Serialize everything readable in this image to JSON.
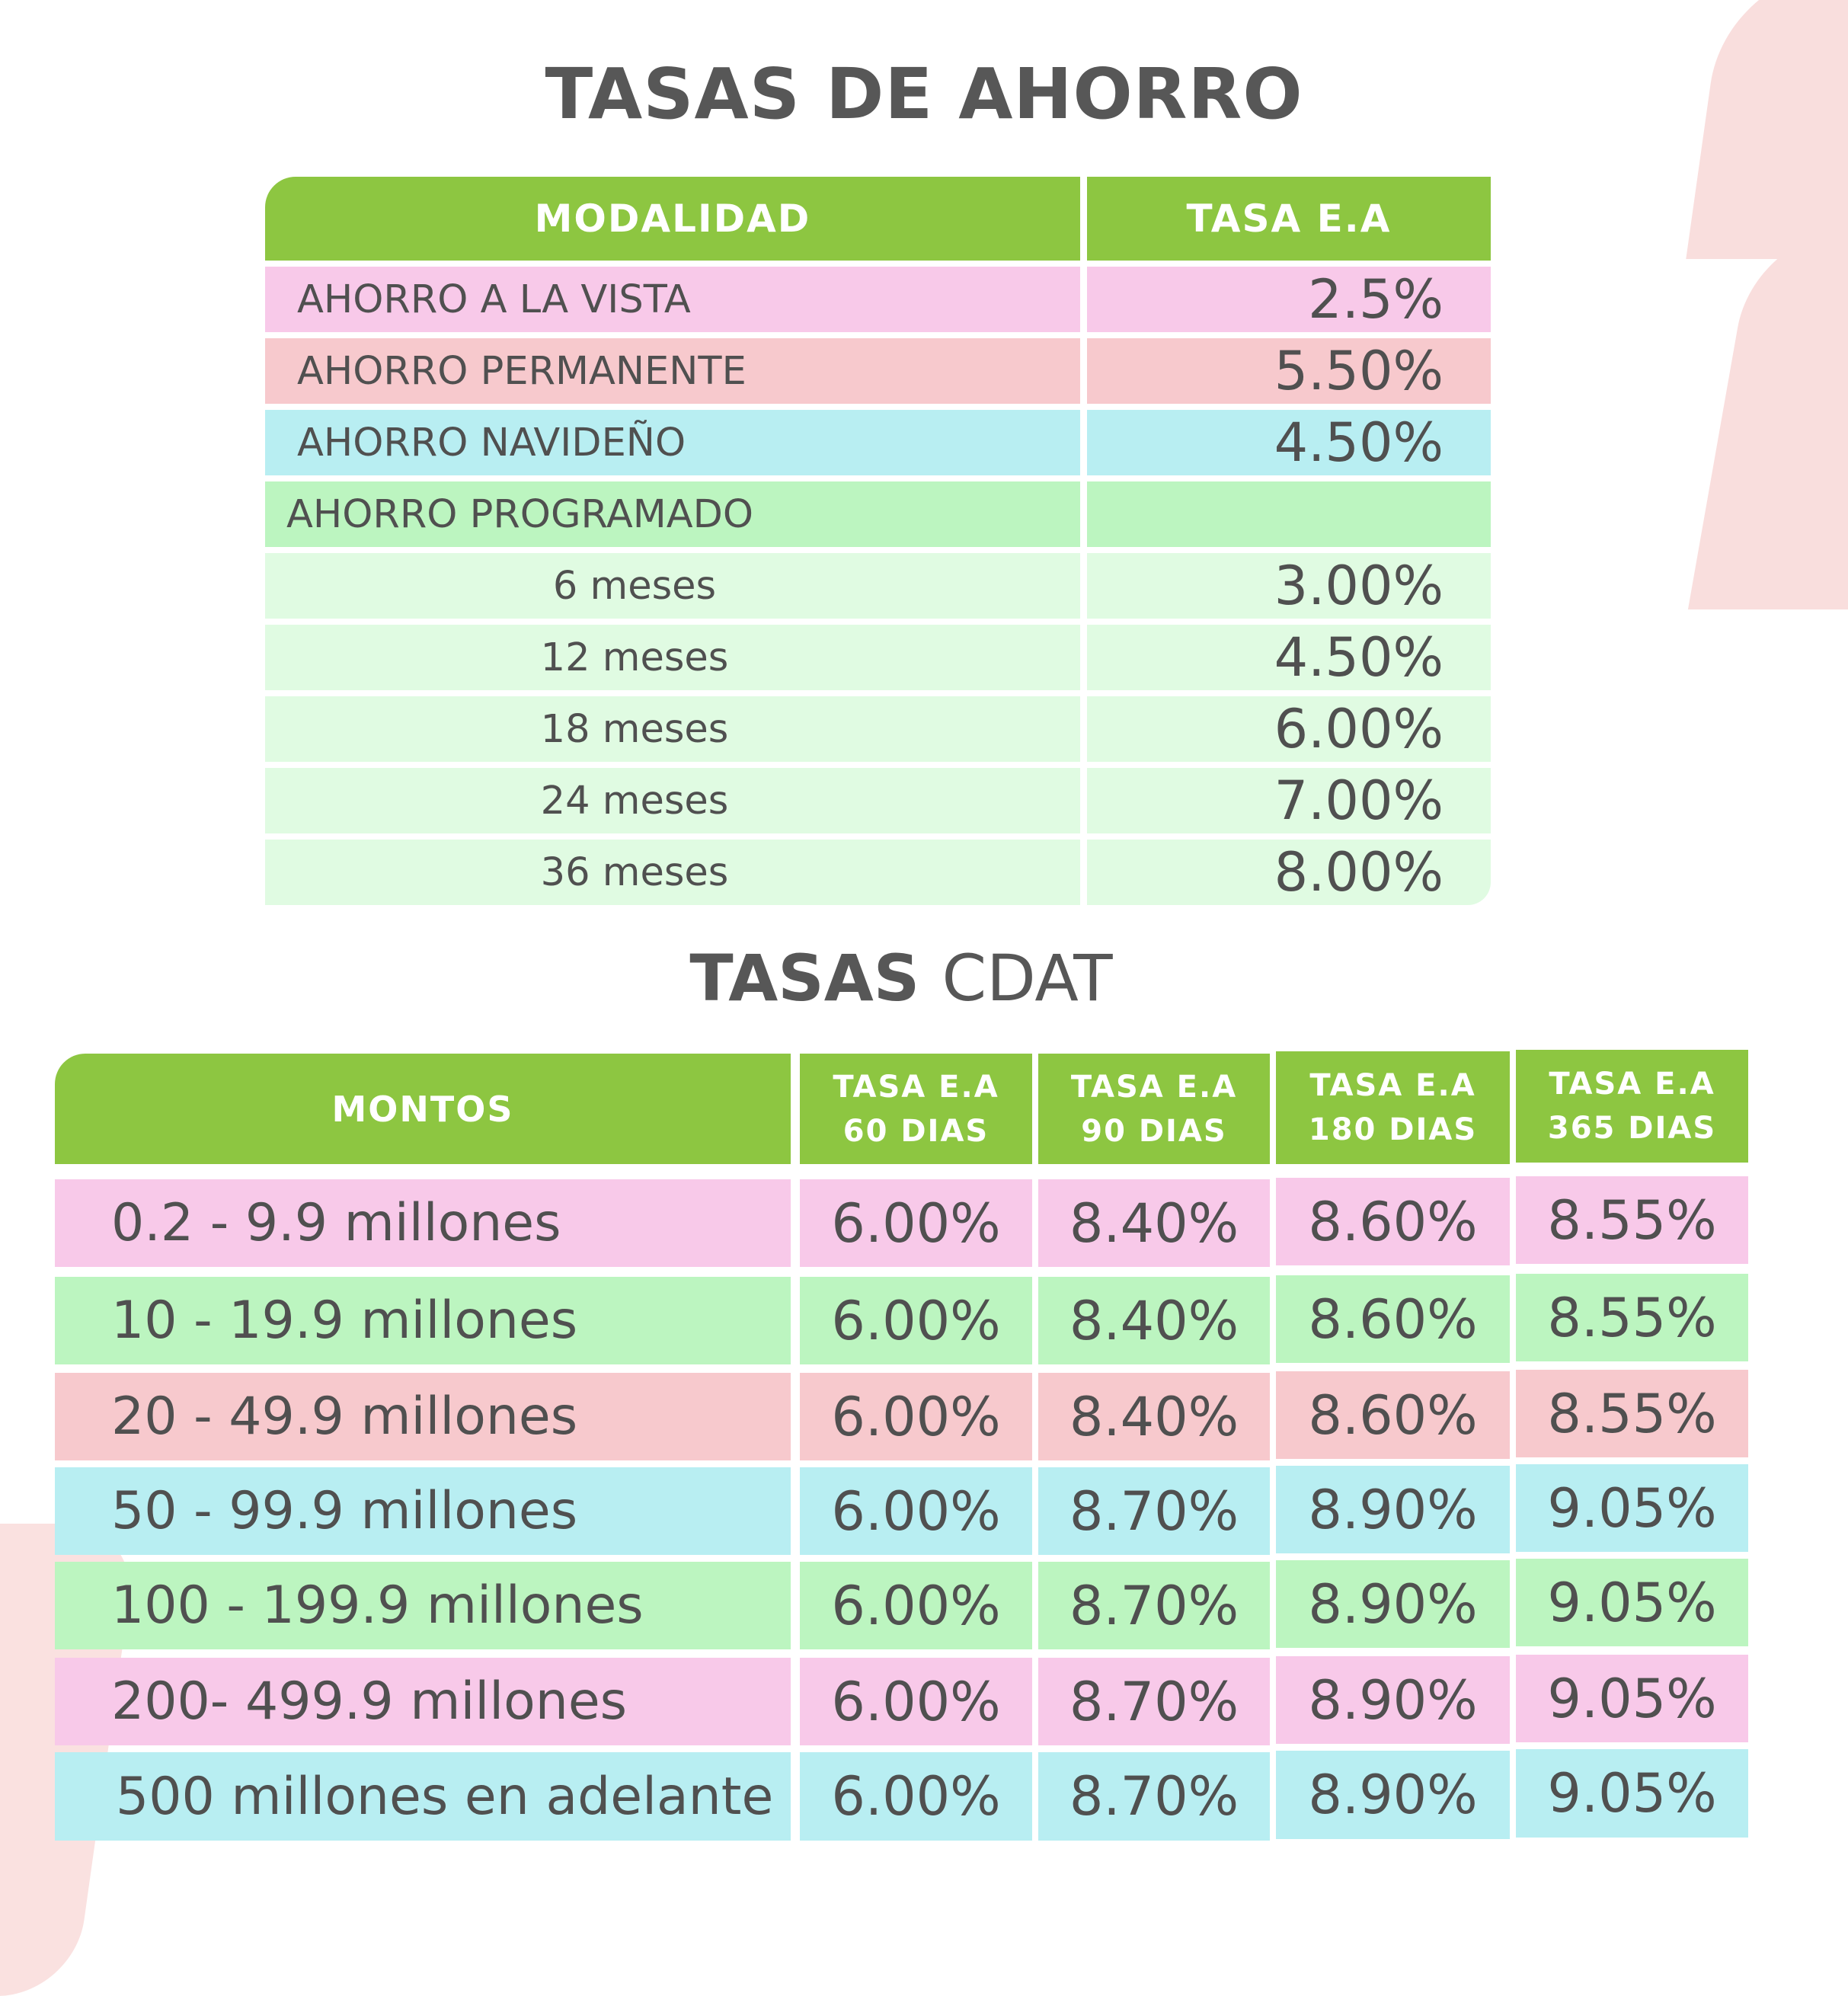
{
  "ahorro": {
    "title": "TASAS DE AHORRO",
    "headers": {
      "modalidad": "MODALIDAD",
      "tasa": "TASA E.A"
    },
    "rows": [
      {
        "name": "AHORRO A LA VISTA",
        "rate": "2.5%"
      },
      {
        "name": "AHORRO PERMANENTE",
        "rate": "5.50%"
      },
      {
        "name": "AHORRO NAVIDEÑO",
        "rate": "4.50%"
      },
      {
        "name": "AHORRO PROGRAMADO",
        "rate": ""
      },
      {
        "name": "6 meses",
        "rate": "3.00%"
      },
      {
        "name": "12 meses",
        "rate": "4.50%"
      },
      {
        "name": "18 meses",
        "rate": "6.00%"
      },
      {
        "name": "24 meses",
        "rate": "7.00%"
      },
      {
        "name": "36 meses",
        "rate": "8.00%"
      }
    ]
  },
  "cdat": {
    "title_bold": "TASAS",
    "title_light": "CDAT",
    "headers": {
      "montos": "MONTOS",
      "cols": [
        {
          "line1": "TASA E.A",
          "line2": "60 DIAS"
        },
        {
          "line1": "TASA E.A",
          "line2": "90 DIAS"
        },
        {
          "line1": "TASA E.A",
          "line2": "180 DIAS"
        },
        {
          "line1": "TASA E.A",
          "line2": "365 DIAS"
        }
      ]
    },
    "rows": [
      {
        "range": "0.2 - 9.9 millones",
        "r60": "6.00%",
        "r90": "8.40%",
        "r180": "8.60%",
        "r365": "8.55%"
      },
      {
        "range": "10 - 19.9 millones",
        "r60": "6.00%",
        "r90": "8.40%",
        "r180": "8.60%",
        "r365": "8.55%"
      },
      {
        "range": "20 - 49.9 millones",
        "r60": "6.00%",
        "r90": "8.40%",
        "r180": "8.60%",
        "r365": "8.55%"
      },
      {
        "range": "50 - 99.9 millones",
        "r60": "6.00%",
        "r90": "8.70%",
        "r180": "8.90%",
        "r365": "9.05%"
      },
      {
        "range": "100 - 199.9 millones",
        "r60": "6.00%",
        "r90": "8.70%",
        "r180": "8.90%",
        "r365": "9.05%"
      },
      {
        "range": "200- 499.9 millones",
        "r60": "6.00%",
        "r90": "8.70%",
        "r180": "8.90%",
        "r365": "9.05%"
      },
      {
        "range": "500 millones en adelante",
        "r60": "6.00%",
        "r90": "8.70%",
        "r180": "8.90%",
        "r365": "9.05%"
      }
    ]
  },
  "colors": {
    "header_green": "#8dc641",
    "pink": "#f8c9e9",
    "rose": "#f7c9cd",
    "cyan": "#b8eef2",
    "green": "#bcf5c0",
    "mint": "#e0fbe2",
    "text": "#505050"
  }
}
